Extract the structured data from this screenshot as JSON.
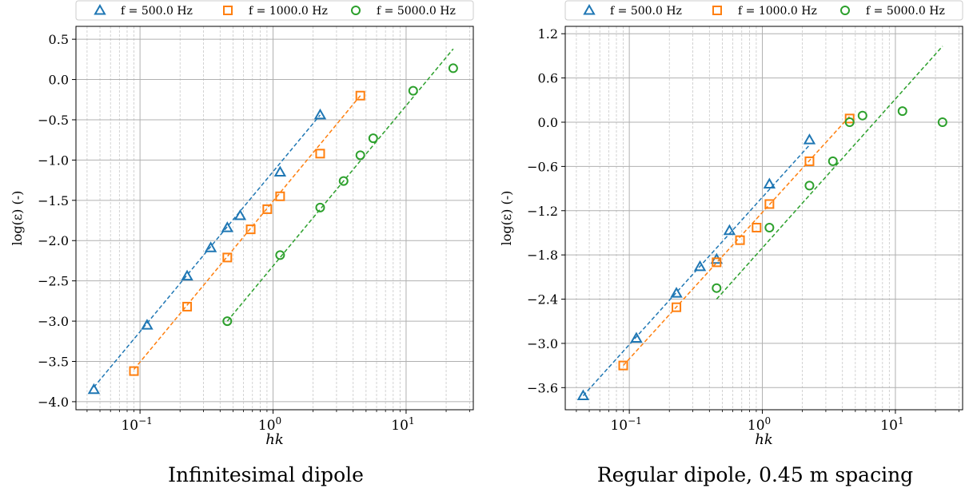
{
  "captions": [
    "Infinitesimal dipole",
    "Regular dipole, 0.45 m spacing"
  ],
  "colors": {
    "f500": "#1f77b4",
    "f1000": "#ff7f0e",
    "f5000": "#2ca02c"
  },
  "chart_data": [
    {
      "type": "scatter",
      "title": "",
      "xlabel": "hk",
      "ylabel": "log(ε) (-)",
      "xscale": "log",
      "xlim": [
        0.033,
        32
      ],
      "ylim": [
        -4.1,
        0.66
      ],
      "yticks": [
        -4.0,
        -3.5,
        -3.0,
        -2.5,
        -2.0,
        -1.5,
        -1.0,
        -0.5,
        0.0,
        0.5
      ],
      "ytick_labels": [
        "−4.0",
        "−3.5",
        "−3.0",
        "−2.5",
        "−2.0",
        "−1.5",
        "−1.0",
        "−0.5",
        "0.0",
        "0.5"
      ],
      "xticks": [
        0.1,
        1,
        10
      ],
      "xtick_labels": [
        "10−1",
        "100",
        "101"
      ],
      "grid": true,
      "legend": "top, outside",
      "series": [
        {
          "name": "f = 500.0 Hz",
          "color": "#1f77b4",
          "marker": "triangle",
          "x": [
            0.045,
            0.113,
            0.226,
            0.34,
            0.453,
            0.566,
            1.13,
            2.26
          ],
          "y": [
            -3.85,
            -3.05,
            -2.44,
            -2.09,
            -1.84,
            -1.69,
            -1.15,
            -0.44
          ],
          "fit": [
            [
              0.045,
              -3.82
            ],
            [
              2.26,
              -0.44
            ]
          ]
        },
        {
          "name": "f = 1000.0 Hz",
          "color": "#ff7f0e",
          "marker": "square",
          "x": [
            0.09,
            0.226,
            0.453,
            0.679,
            0.905,
            1.13,
            2.26,
            4.53
          ],
          "y": [
            -3.62,
            -2.82,
            -2.21,
            -1.86,
            -1.61,
            -1.45,
            -0.92,
            -0.2
          ],
          "fit": [
            [
              0.09,
              -3.6
            ],
            [
              4.53,
              -0.2
            ]
          ]
        },
        {
          "name": "f = 5000.0 Hz",
          "color": "#2ca02c",
          "marker": "circle",
          "x": [
            0.453,
            1.13,
            2.26,
            3.39,
            4.53,
            5.66,
            11.3,
            22.6
          ],
          "y": [
            -3.0,
            -2.18,
            -1.59,
            -1.26,
            -0.94,
            -0.73,
            -0.14,
            0.14
          ],
          "fit": [
            [
              0.453,
              -3.0
            ],
            [
              22.6,
              0.38
            ]
          ]
        }
      ]
    },
    {
      "type": "scatter",
      "title": "",
      "xlabel": "hk",
      "ylabel": "log(ε) (-)",
      "xscale": "log",
      "xlim": [
        0.033,
        32
      ],
      "ylim": [
        -3.9,
        1.3
      ],
      "yticks": [
        -3.6,
        -3.0,
        -2.4,
        -1.8,
        -1.2,
        -0.6,
        0.0,
        0.6,
        1.2
      ],
      "ytick_labels": [
        "−3.6",
        "−3.0",
        "−2.4",
        "−1.8",
        "−1.2",
        "−0.6",
        "0.0",
        "0.6",
        "1.2"
      ],
      "xticks": [
        0.1,
        1,
        10
      ],
      "xtick_labels": [
        "10−1",
        "100",
        "101"
      ],
      "grid": true,
      "legend": "top, outside",
      "series": [
        {
          "name": "f = 500.0 Hz",
          "color": "#1f77b4",
          "marker": "triangle",
          "x": [
            0.045,
            0.113,
            0.226,
            0.34,
            0.453,
            0.566,
            1.13,
            2.26
          ],
          "y": [
            -3.71,
            -2.93,
            -2.32,
            -1.96,
            -1.86,
            -1.47,
            -0.84,
            -0.24
          ],
          "fit": [
            [
              0.045,
              -3.71
            ],
            [
              2.26,
              -0.31
            ]
          ]
        },
        {
          "name": "f = 1000.0 Hz",
          "color": "#ff7f0e",
          "marker": "square",
          "x": [
            0.09,
            0.226,
            0.453,
            0.679,
            0.905,
            1.13,
            2.26,
            4.53
          ],
          "y": [
            -3.3,
            -2.51,
            -1.9,
            -1.6,
            -1.43,
            -1.11,
            -0.53,
            0.05
          ],
          "fit": [
            [
              0.09,
              -3.3
            ],
            [
              4.53,
              0.08
            ]
          ]
        },
        {
          "name": "f = 5000.0 Hz",
          "color": "#2ca02c",
          "marker": "circle",
          "x": [
            0.453,
            1.13,
            2.26,
            3.39,
            4.53,
            5.66,
            11.3,
            22.6
          ],
          "y": [
            -2.25,
            -1.43,
            -0.86,
            -0.53,
            0.0,
            0.09,
            0.15,
            0.0
          ],
          "fit": [
            [
              0.453,
              -2.4
            ],
            [
              22.6,
              1.03
            ]
          ]
        }
      ]
    }
  ]
}
